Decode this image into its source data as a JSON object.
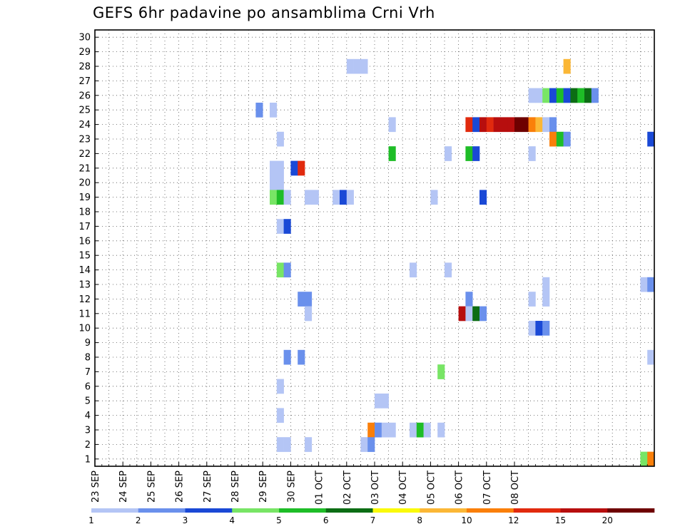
{
  "chart_data": {
    "type": "heatmap",
    "title": "GEFS 6hr padavine po ansamblima Crni Vrh",
    "x_labels": [
      "23 SEP",
      "24 SEP",
      "25 SEP",
      "26 SEP",
      "27 SEP",
      "28 SEP",
      "29 SEP",
      "30 SEP",
      "01 OCT",
      "02 OCT",
      "03 OCT",
      "04 OCT",
      "05 OCT",
      "06 OCT",
      "07 OCT",
      "08 OCT"
    ],
    "y_labels": [
      "1",
      "2",
      "3",
      "4",
      "5",
      "6",
      "7",
      "8",
      "9",
      "10",
      "11",
      "12",
      "13",
      "14",
      "15",
      "16",
      "17",
      "18",
      "19",
      "20",
      "21",
      "22",
      "23",
      "24",
      "25",
      "26",
      "27",
      "28",
      "29",
      "30"
    ],
    "x_unit": "6-hour step",
    "steps_per_day": 4,
    "grid": "dotted",
    "legend": {
      "placement": "bottom",
      "labels": [
        "1",
        "2",
        "3",
        "4",
        "5",
        "6",
        "7",
        "8",
        "10",
        "12",
        "15",
        "20"
      ],
      "colors": [
        "#b4c5f5",
        "#6a90ec",
        "#1a49d6",
        "#78e565",
        "#1ebd27",
        "#0c6d14",
        "#fafa0a",
        "#fbb736",
        "#fa7f0a",
        "#e12a0e",
        "#b70e0e",
        "#6e0000"
      ]
    },
    "cells": [
      [
        36,
        27,
        1
      ],
      [
        37,
        27,
        1
      ],
      [
        38,
        27,
        1
      ],
      [
        67,
        27,
        8
      ],
      [
        62,
        25,
        1
      ],
      [
        63,
        25,
        1
      ],
      [
        64,
        25,
        4
      ],
      [
        65,
        25,
        3
      ],
      [
        66,
        25,
        5
      ],
      [
        67,
        25,
        3
      ],
      [
        68,
        25,
        6
      ],
      [
        69,
        25,
        5
      ],
      [
        70,
        25,
        6
      ],
      [
        71,
        25,
        2
      ],
      [
        23,
        24,
        2
      ],
      [
        25,
        24,
        1
      ],
      [
        42,
        23,
        1
      ],
      [
        53,
        23,
        10
      ],
      [
        54,
        23,
        3
      ],
      [
        55,
        23,
        11
      ],
      [
        56,
        23,
        10
      ],
      [
        57,
        23,
        11
      ],
      [
        58,
        23,
        11
      ],
      [
        59,
        23,
        11
      ],
      [
        60,
        23,
        12
      ],
      [
        61,
        23,
        12
      ],
      [
        62,
        23,
        9
      ],
      [
        63,
        23,
        8
      ],
      [
        64,
        23,
        1
      ],
      [
        65,
        23,
        2
      ],
      [
        26,
        22,
        1
      ],
      [
        65,
        22,
        9
      ],
      [
        66,
        22,
        5
      ],
      [
        67,
        22,
        2
      ],
      [
        79,
        22,
        3
      ],
      [
        42,
        21,
        5
      ],
      [
        50,
        21,
        1
      ],
      [
        53,
        21,
        5
      ],
      [
        54,
        21,
        3
      ],
      [
        62,
        21,
        1
      ],
      [
        25,
        20,
        1
      ],
      [
        26,
        20,
        1
      ],
      [
        28,
        20,
        3
      ],
      [
        29,
        20,
        10
      ],
      [
        25,
        19,
        1
      ],
      [
        26,
        19,
        1
      ],
      [
        25,
        18,
        4
      ],
      [
        26,
        18,
        5
      ],
      [
        27,
        18,
        1
      ],
      [
        30,
        18,
        1
      ],
      [
        31,
        18,
        1
      ],
      [
        34,
        18,
        1
      ],
      [
        35,
        18,
        3
      ],
      [
        36,
        18,
        1
      ],
      [
        48,
        18,
        1
      ],
      [
        55,
        18,
        3
      ],
      [
        26,
        16,
        1
      ],
      [
        27,
        16,
        3
      ],
      [
        26,
        13,
        4
      ],
      [
        27,
        13,
        2
      ],
      [
        45,
        13,
        1
      ],
      [
        50,
        13,
        1
      ],
      [
        64,
        12,
        1
      ],
      [
        78,
        12,
        1
      ],
      [
        79,
        12,
        2
      ],
      [
        29,
        11,
        2
      ],
      [
        30,
        11,
        2
      ],
      [
        53,
        11,
        2
      ],
      [
        62,
        11,
        1
      ],
      [
        64,
        11,
        1
      ],
      [
        30,
        10,
        1
      ],
      [
        52,
        10,
        11
      ],
      [
        53,
        10,
        1
      ],
      [
        54,
        10,
        6
      ],
      [
        55,
        10,
        2
      ],
      [
        62,
        9,
        1
      ],
      [
        63,
        9,
        3
      ],
      [
        64,
        9,
        2
      ],
      [
        27,
        7,
        2
      ],
      [
        29,
        7,
        2
      ],
      [
        79,
        7,
        1
      ],
      [
        49,
        6,
        4
      ],
      [
        26,
        5,
        1
      ],
      [
        40,
        4,
        1
      ],
      [
        41,
        4,
        1
      ],
      [
        26,
        3,
        1
      ],
      [
        39,
        2,
        9
      ],
      [
        40,
        2,
        2
      ],
      [
        41,
        2,
        1
      ],
      [
        42,
        2,
        1
      ],
      [
        45,
        2,
        1
      ],
      [
        46,
        2,
        5
      ],
      [
        47,
        2,
        1
      ],
      [
        49,
        2,
        1
      ],
      [
        26,
        1,
        1
      ],
      [
        27,
        1,
        1
      ],
      [
        30,
        1,
        1
      ],
      [
        38,
        1,
        1
      ],
      [
        39,
        1,
        2
      ],
      [
        78,
        0,
        4
      ],
      [
        79,
        0,
        9
      ]
    ]
  }
}
